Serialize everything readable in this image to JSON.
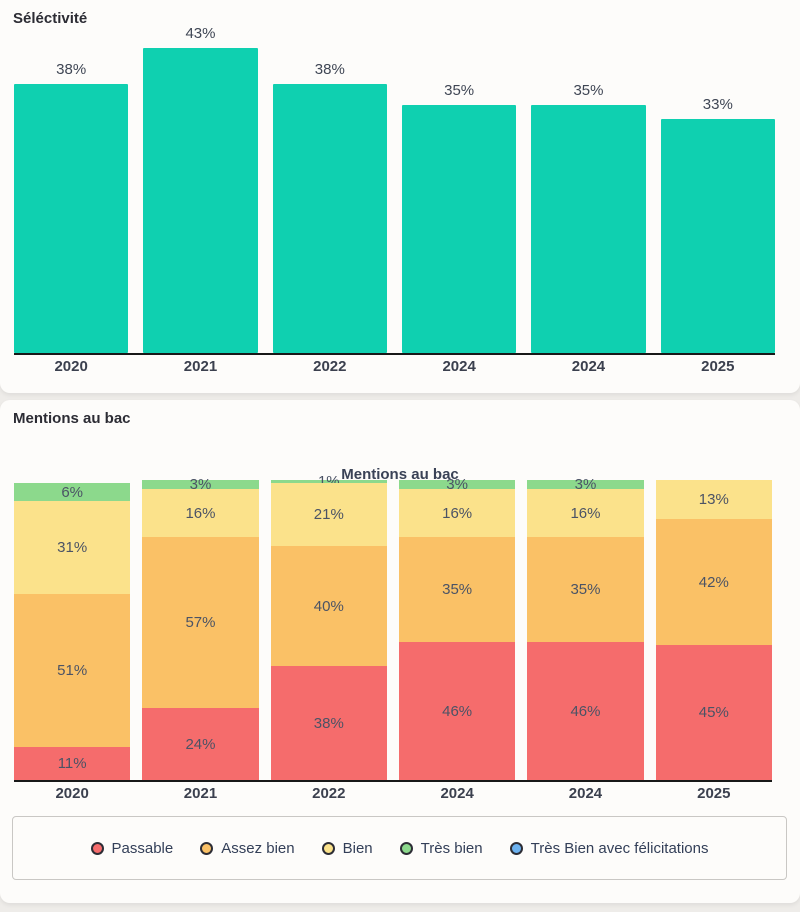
{
  "page": {
    "background": "#eeece9",
    "card_background": "#fdfcfa",
    "axis_color": "#181818"
  },
  "selectivity": {
    "title": "Séléctivité"
  },
  "mentions": {
    "title": "Mentions au bac",
    "chart_title": "Mentions au bac"
  },
  "chart_data": [
    {
      "type": "bar",
      "title": "Séléctivité",
      "categories": [
        "2020",
        "2021",
        "2022",
        "2024",
        "2024",
        "2025"
      ],
      "values": [
        38,
        43,
        38,
        35,
        35,
        33
      ],
      "unit": "%",
      "bar_color": "#0fd0b0",
      "ylim": [
        0,
        43
      ],
      "grid": false,
      "value_labels": "above-bars",
      "legend_position": "none"
    },
    {
      "type": "bar",
      "stacked": true,
      "title": "Mentions au bac",
      "categories": [
        "2020",
        "2021",
        "2022",
        "2024",
        "2024",
        "2025"
      ],
      "unit": "%",
      "ylim": [
        0,
        100
      ],
      "grid": false,
      "value_labels": "inside-segments",
      "legend_position": "bottom",
      "series": [
        {
          "name": "Passable",
          "color": "#f56c6c",
          "values": [
            11,
            24,
            38,
            46,
            46,
            45
          ]
        },
        {
          "name": "Assez bien",
          "color": "#fac166",
          "values": [
            51,
            57,
            40,
            35,
            35,
            42
          ]
        },
        {
          "name": "Bien",
          "color": "#fbe28b",
          "values": [
            31,
            16,
            21,
            16,
            16,
            13
          ]
        },
        {
          "name": "Très bien",
          "color": "#8cd98c",
          "values": [
            6,
            3,
            1,
            3,
            3,
            0
          ]
        },
        {
          "name": "Très Bien avec félicitations",
          "color": "#6cb2f0",
          "values": [
            0,
            0,
            0,
            0,
            0,
            0
          ]
        }
      ]
    }
  ]
}
